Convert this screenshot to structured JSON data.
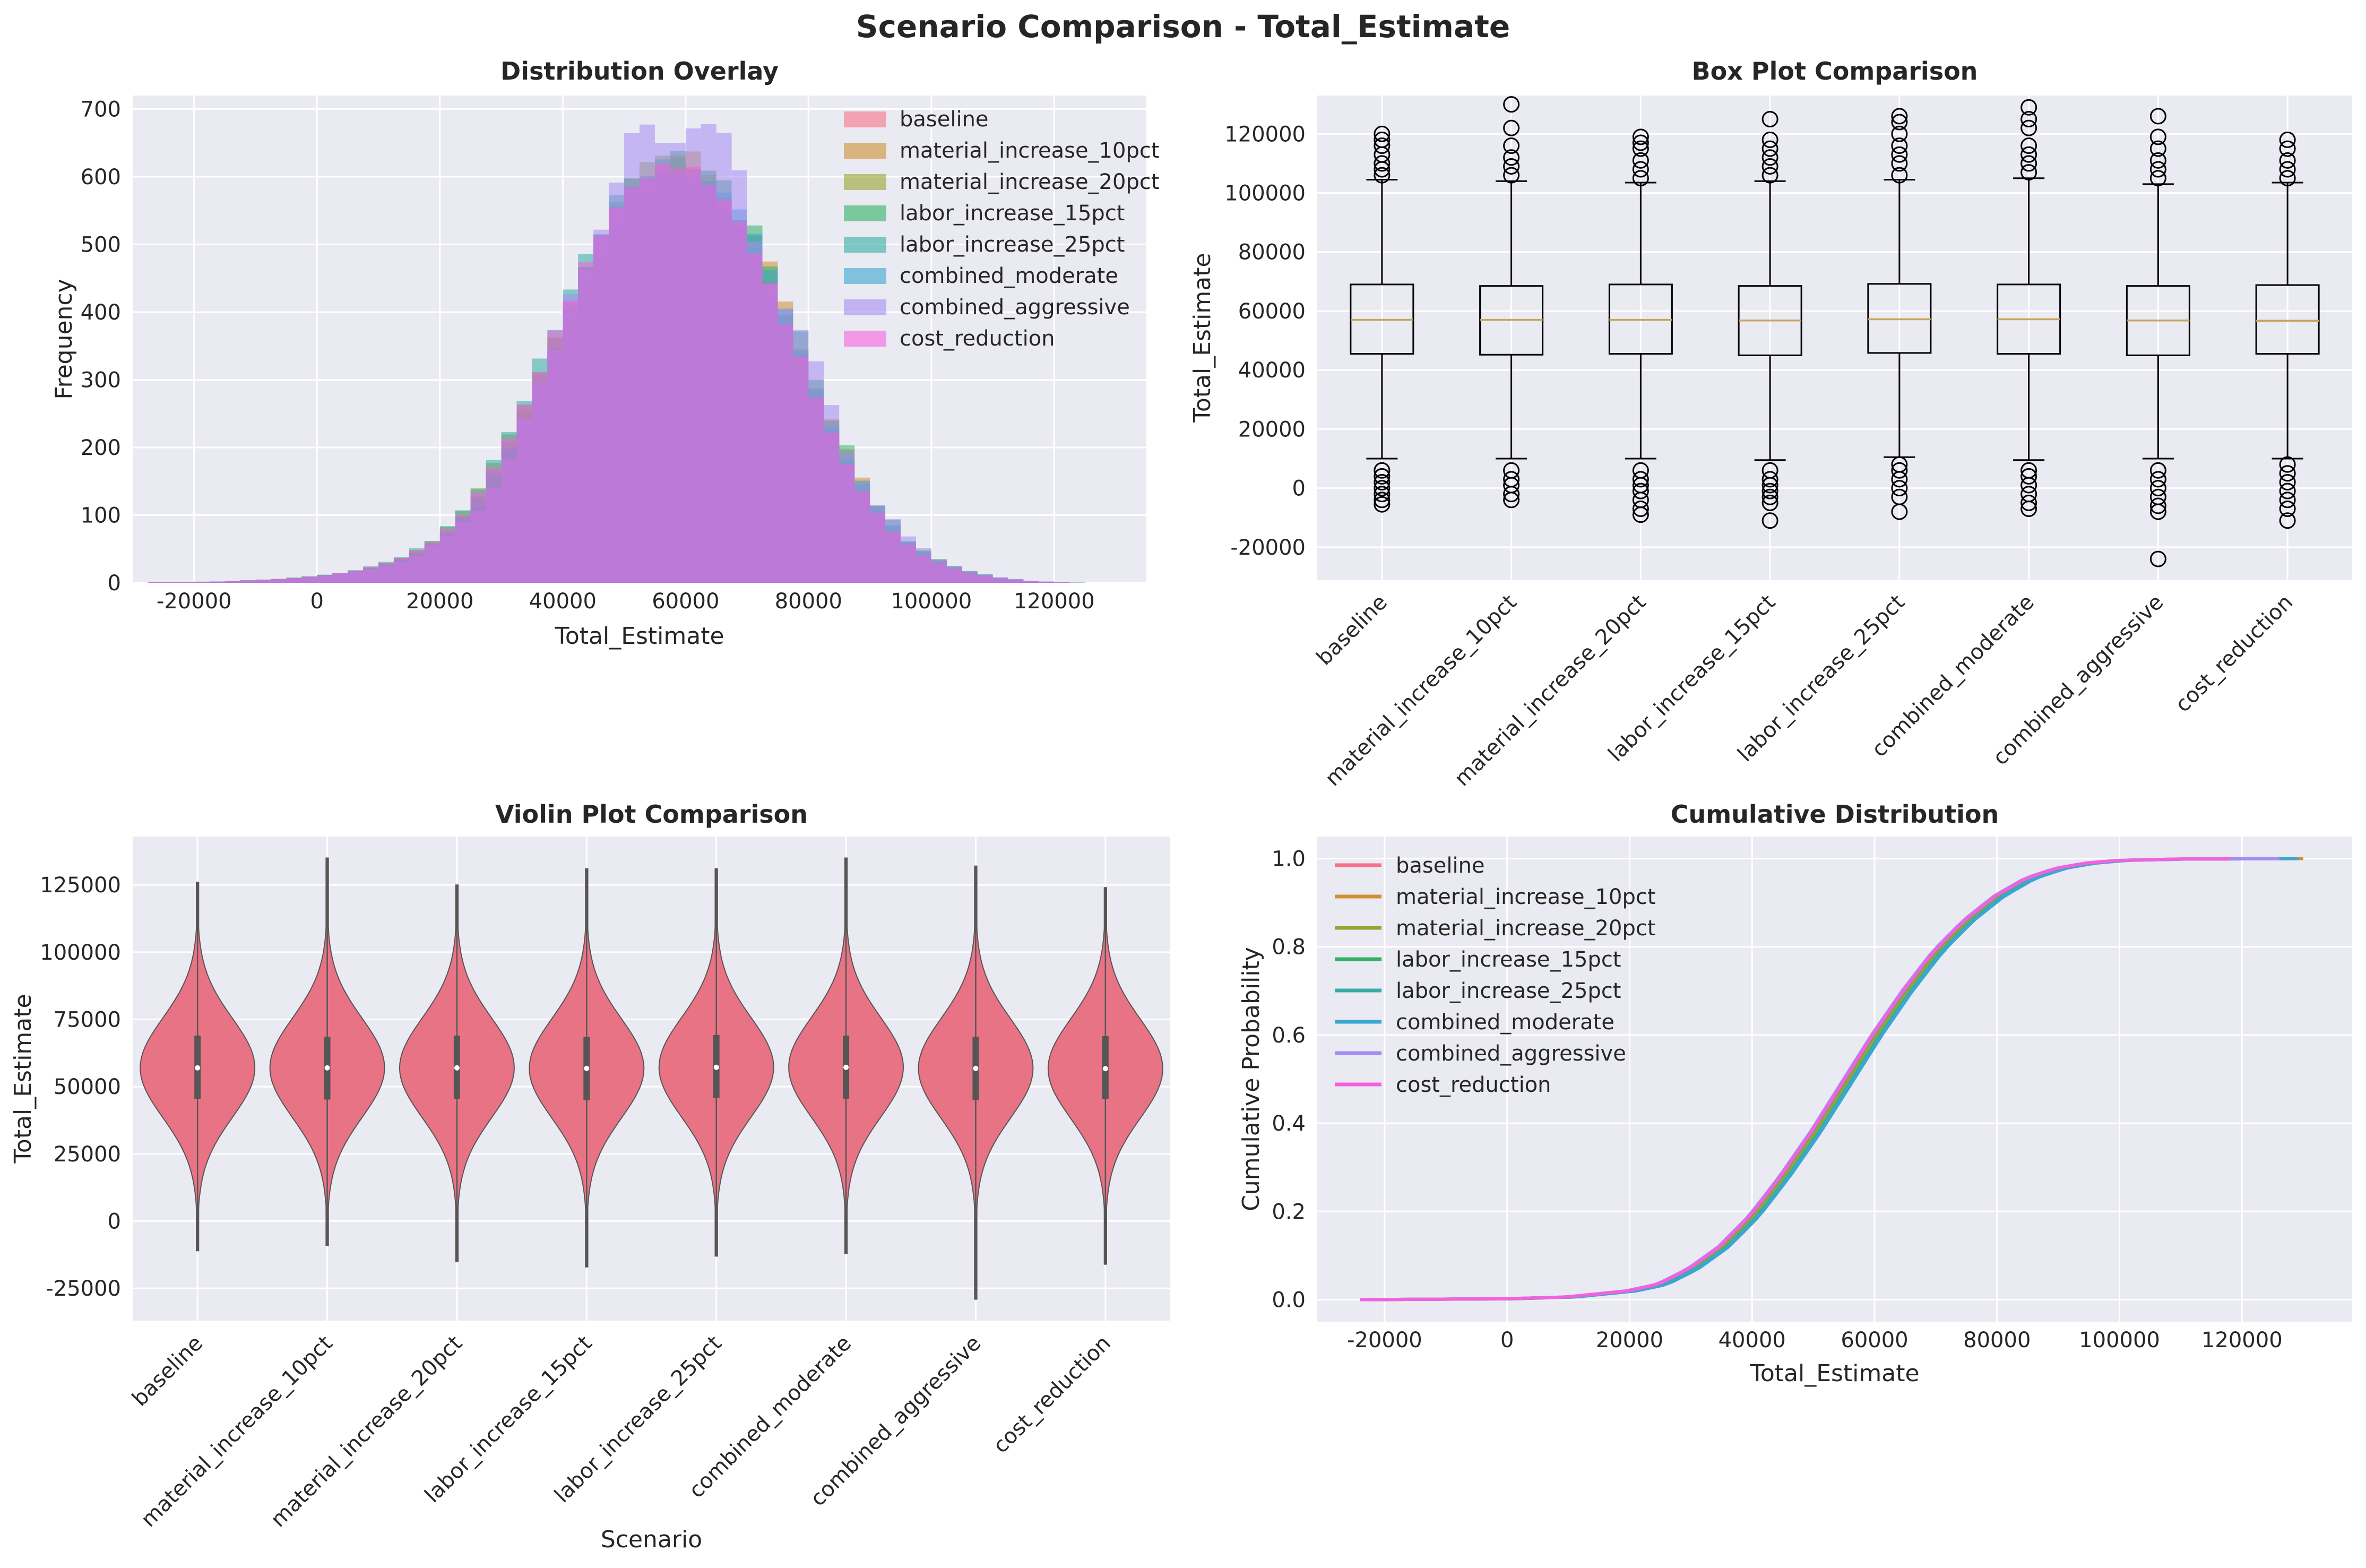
{
  "figure_title": "Scenario Comparison - Total_Estimate",
  "colors": {
    "panel_bg": "#eaeaf2",
    "grid": "#ffffff",
    "text": "#262626",
    "series": [
      "#f77189",
      "#ce9032",
      "#97a431",
      "#32b166",
      "#36ada4",
      "#39a7d0",
      "#a48cf4",
      "#f561dd"
    ],
    "violin_fill": "#e87385",
    "box_median": "#c8a45a"
  },
  "chart_data": [
    {
      "id": "hist",
      "type": "histogram",
      "title": "Distribution Overlay",
      "xlabel": "Total_Estimate",
      "ylabel": "Frequency",
      "xlim": [
        -30000,
        135000
      ],
      "ylim": [
        0,
        720
      ],
      "xticks": [
        -20000,
        0,
        20000,
        40000,
        60000,
        80000,
        100000,
        120000
      ],
      "yticks": [
        0,
        100,
        200,
        300,
        400,
        500,
        600,
        700
      ],
      "grid": true,
      "legend_position": "upper-right",
      "series": [
        {
          "name": "baseline"
        },
        {
          "name": "material_increase_10pct"
        },
        {
          "name": "material_increase_20pct"
        },
        {
          "name": "labor_increase_15pct"
        },
        {
          "name": "labor_increase_25pct"
        },
        {
          "name": "combined_moderate"
        },
        {
          "name": "combined_aggressive"
        },
        {
          "name": "cost_reduction"
        }
      ],
      "envelope": {
        "x": [
          -24000,
          -15000,
          -10000,
          -5000,
          0,
          5000,
          10000,
          15000,
          20000,
          25000,
          30000,
          35000,
          40000,
          45000,
          50000,
          55000,
          60000,
          65000,
          70000,
          75000,
          80000,
          85000,
          90000,
          95000,
          100000,
          105000,
          110000,
          115000,
          120000,
          126000
        ],
        "y": [
          1,
          2,
          4,
          6,
          10,
          15,
          25,
          40,
          65,
          110,
          185,
          280,
          390,
          490,
          570,
          610,
          620,
          585,
          520,
          420,
          310,
          200,
          120,
          65,
          35,
          18,
          8,
          3,
          1,
          0
        ]
      },
      "peaks": {
        "x": [
          42000,
          47000,
          52000,
          55000,
          58000,
          61000,
          64000,
          67000
        ],
        "y": [
          480,
          560,
          660,
          670,
          690,
          680,
          640,
          600
        ]
      }
    },
    {
      "id": "box",
      "type": "box",
      "title": "Box Plot Comparison",
      "xlabel": "",
      "ylabel": "Total_Estimate",
      "ylim": [
        -31000,
        133000
      ],
      "yticks": [
        -20000,
        0,
        20000,
        40000,
        60000,
        80000,
        100000,
        120000
      ],
      "grid": true,
      "categories": [
        "baseline",
        "material_increase_10pct",
        "material_increase_20pct",
        "labor_increase_15pct",
        "labor_increase_25pct",
        "combined_moderate",
        "combined_aggressive",
        "cost_reduction"
      ],
      "stats": [
        {
          "q1": 45500,
          "median": 57000,
          "q3": 69000,
          "whisker_low": 10000,
          "whisker_high": 104500,
          "flier_low": [
            -5500,
            -4000,
            -2000,
            0,
            2000,
            4000,
            6000
          ],
          "flier_high": [
            106000,
            108000,
            110000,
            113000,
            116000,
            118000,
            120000
          ]
        },
        {
          "q1": 45200,
          "median": 57000,
          "q3": 68500,
          "whisker_low": 10000,
          "whisker_high": 104000,
          "flier_low": [
            -4000,
            -2000,
            1000,
            3000,
            6000
          ],
          "flier_high": [
            106000,
            109000,
            112000,
            116000,
            122000,
            130000
          ]
        },
        {
          "q1": 45500,
          "median": 57000,
          "q3": 69000,
          "whisker_low": 10000,
          "whisker_high": 103500,
          "flier_low": [
            -9000,
            -7000,
            -4000,
            -1000,
            1000,
            3000,
            6000
          ],
          "flier_high": [
            105000,
            108000,
            111000,
            115000,
            117000,
            119000
          ]
        },
        {
          "q1": 45000,
          "median": 56800,
          "q3": 68500,
          "whisker_low": 9500,
          "whisker_high": 104000,
          "flier_low": [
            -11000,
            -5000,
            -3000,
            -1000,
            1000,
            3000,
            6000
          ],
          "flier_high": [
            106000,
            109000,
            112000,
            115000,
            118000,
            125000
          ]
        },
        {
          "q1": 45800,
          "median": 57200,
          "q3": 69200,
          "whisker_low": 10500,
          "whisker_high": 104500,
          "flier_low": [
            -8000,
            -3000,
            0,
            3000,
            6000,
            8000
          ],
          "flier_high": [
            106000,
            110000,
            113000,
            116000,
            120000,
            124000,
            126000
          ]
        },
        {
          "q1": 45500,
          "median": 57200,
          "q3": 69000,
          "whisker_low": 9500,
          "whisker_high": 105000,
          "flier_low": [
            -7000,
            -5000,
            -2000,
            1000,
            4000,
            6000
          ],
          "flier_high": [
            107000,
            110000,
            113000,
            116000,
            122000,
            125000,
            129000
          ]
        },
        {
          "q1": 45000,
          "median": 56800,
          "q3": 68500,
          "whisker_low": 10000,
          "whisker_high": 103000,
          "flier_low": [
            -24000,
            -8000,
            -6000,
            -3000,
            0,
            3000,
            6000
          ],
          "flier_high": [
            105000,
            108000,
            111000,
            115000,
            119000,
            126000
          ]
        },
        {
          "q1": 45500,
          "median": 56700,
          "q3": 68800,
          "whisker_low": 10000,
          "whisker_high": 103500,
          "flier_low": [
            -11000,
            -7000,
            -4000,
            -1000,
            2000,
            5000,
            8000
          ],
          "flier_high": [
            105000,
            108000,
            111000,
            115000,
            118000
          ]
        }
      ]
    },
    {
      "id": "violin",
      "type": "violin",
      "title": "Violin Plot Comparison",
      "xlabel": "Scenario",
      "ylabel": "Total_Estimate",
      "ylim": [
        -37000,
        143000
      ],
      "yticks": [
        -25000,
        0,
        25000,
        50000,
        75000,
        100000,
        125000
      ],
      "grid": true,
      "categories": [
        "baseline",
        "material_increase_10pct",
        "material_increase_20pct",
        "labor_increase_15pct",
        "labor_increase_25pct",
        "combined_moderate",
        "combined_aggressive",
        "cost_reduction"
      ],
      "ranges": [
        {
          "min": -11000,
          "max": 126000,
          "q1": 45500,
          "median": 57000,
          "q3": 69000
        },
        {
          "min": -9000,
          "max": 135000,
          "q1": 45200,
          "median": 57000,
          "q3": 68500
        },
        {
          "min": -15000,
          "max": 125000,
          "q1": 45500,
          "median": 57000,
          "q3": 69000
        },
        {
          "min": -17000,
          "max": 131000,
          "q1": 45000,
          "median": 56800,
          "q3": 68500
        },
        {
          "min": -13000,
          "max": 131000,
          "q1": 45800,
          "median": 57200,
          "q3": 69200
        },
        {
          "min": -12000,
          "max": 135000,
          "q1": 45500,
          "median": 57200,
          "q3": 69000
        },
        {
          "min": -29000,
          "max": 132000,
          "q1": 45000,
          "median": 56800,
          "q3": 68500
        },
        {
          "min": -16000,
          "max": 124000,
          "q1": 45500,
          "median": 56700,
          "q3": 68800
        }
      ]
    },
    {
      "id": "cdf",
      "type": "line",
      "title": "Cumulative Distribution",
      "xlabel": "Total_Estimate",
      "ylabel": "Cumulative Probability",
      "xlim": [
        -31000,
        138000
      ],
      "ylim": [
        -0.05,
        1.05
      ],
      "xticks": [
        -20000,
        0,
        20000,
        40000,
        60000,
        80000,
        100000,
        120000
      ],
      "yticks": [
        0.0,
        0.2,
        0.4,
        0.6,
        0.8,
        1.0
      ],
      "ytick_labels": [
        "0.0",
        "0.2",
        "0.4",
        "0.6",
        "0.8",
        "1.0"
      ],
      "grid": true,
      "legend_position": "upper-left",
      "series": [
        {
          "name": "baseline",
          "x_range": [
            -6000,
            120000
          ]
        },
        {
          "name": "material_increase_10pct",
          "x_range": [
            -4000,
            130000
          ]
        },
        {
          "name": "material_increase_20pct",
          "x_range": [
            -9000,
            120000
          ]
        },
        {
          "name": "labor_increase_15pct",
          "x_range": [
            -11000,
            125000
          ]
        },
        {
          "name": "labor_increase_25pct",
          "x_range": [
            -8000,
            126000
          ]
        },
        {
          "name": "combined_moderate",
          "x_range": [
            -7000,
            129000
          ]
        },
        {
          "name": "combined_aggressive",
          "x_range": [
            -24000,
            126000
          ]
        },
        {
          "name": "cost_reduction",
          "x_range": [
            -11000,
            118000
          ]
        }
      ],
      "curve": {
        "x": [
          -24000,
          0,
          10000,
          20000,
          25000,
          30000,
          35000,
          40000,
          45000,
          50000,
          55000,
          60000,
          65000,
          70000,
          75000,
          80000,
          85000,
          90000,
          95000,
          100000,
          110000,
          130000
        ],
        "y": [
          0.0,
          0.002,
          0.006,
          0.02,
          0.035,
          0.07,
          0.12,
          0.19,
          0.28,
          0.38,
          0.49,
          0.6,
          0.7,
          0.79,
          0.86,
          0.915,
          0.955,
          0.978,
          0.99,
          0.996,
          0.999,
          1.0
        ]
      }
    }
  ]
}
